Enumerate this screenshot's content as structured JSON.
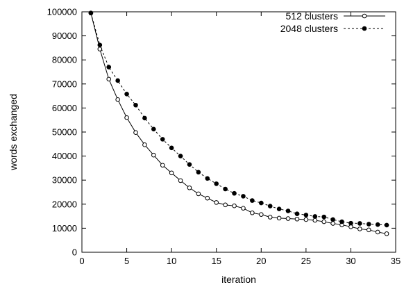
{
  "chart_data": {
    "type": "line",
    "title": "",
    "xlabel": "iteration",
    "ylabel": "words exchanged",
    "xlim": [
      0,
      35
    ],
    "ylim": [
      0,
      100000
    ],
    "x_ticks": [
      0,
      5,
      10,
      15,
      20,
      25,
      30,
      35
    ],
    "y_ticks": [
      0,
      10000,
      20000,
      30000,
      40000,
      50000,
      60000,
      70000,
      80000,
      90000,
      100000
    ],
    "grid": false,
    "legend_position": "top-right",
    "x": [
      1,
      2,
      3,
      4,
      5,
      6,
      7,
      8,
      9,
      10,
      11,
      12,
      13,
      14,
      15,
      16,
      17,
      18,
      19,
      20,
      21,
      22,
      23,
      24,
      25,
      26,
      27,
      28,
      29,
      30,
      31,
      32,
      33,
      34
    ],
    "series": [
      {
        "name": "512 clusters",
        "line_style": "solid",
        "marker": "open-circle",
        "color": "#000000",
        "values": [
          99500,
          84500,
          72000,
          63500,
          56000,
          49800,
          44700,
          40400,
          36200,
          33000,
          29800,
          26800,
          24300,
          22500,
          20700,
          19700,
          19300,
          18300,
          16400,
          15700,
          14600,
          14200,
          14000,
          13800,
          13600,
          13300,
          12700,
          12000,
          11400,
          10600,
          9700,
          9300,
          8400,
          7700
        ]
      },
      {
        "name": "2048 clusters",
        "line_style": "dashed",
        "marker": "filled-circle",
        "color": "#000000",
        "values": [
          99500,
          86200,
          77000,
          71400,
          65800,
          61200,
          55800,
          51200,
          47000,
          43400,
          40000,
          36500,
          33300,
          30700,
          28500,
          26300,
          24500,
          23300,
          21500,
          20500,
          19200,
          18000,
          17200,
          16000,
          15500,
          14900,
          14700,
          13600,
          12700,
          12100,
          12000,
          11700,
          11500,
          11300
        ]
      }
    ]
  }
}
